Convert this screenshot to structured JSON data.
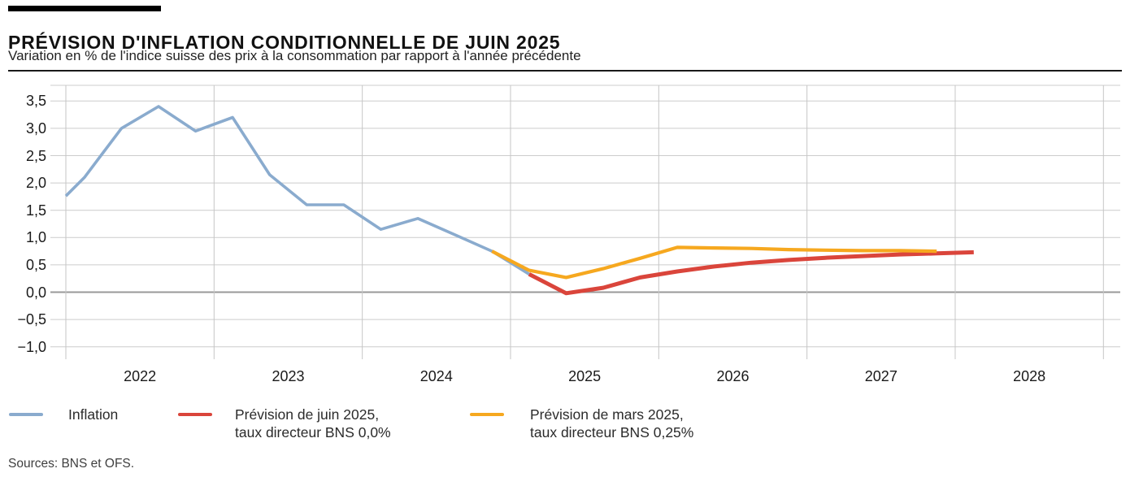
{
  "header": {
    "title": "PRÉVISION D'INFLATION CONDITIONNELLE DE JUIN 2025",
    "subtitle": "Variation en % de l'indice suisse des prix à la consommation par rapport à l'année précédente"
  },
  "footer": {
    "sources": "Sources: BNS et OFS."
  },
  "legend": [
    {
      "label_line1": "Inflation",
      "label_line2": "",
      "color": "#8aabce"
    },
    {
      "label_line1": "Prévision de juin 2025,",
      "label_line2": "taux directeur BNS 0,0%",
      "color": "#da453b"
    },
    {
      "label_line1": "Prévision de mars 2025,",
      "label_line2": "taux directeur BNS 0,25%",
      "color": "#f6a81f"
    }
  ],
  "colors": {
    "inflation_line": "#8aabce",
    "june_forecast_line": "#da453b",
    "march_forecast_line": "#f6a81f",
    "gridline": "#cccccc",
    "zero_line": "#999999",
    "text": "#1a1a1a"
  },
  "chart_data": {
    "type": "line",
    "title": "Prévision d'inflation conditionnelle de juin 2025",
    "ylabel": "Variation en % de l'indice suisse des prix à la consommation par rapport à l'année précédente",
    "grid": true,
    "legend_position": "bottom",
    "x_axis": {
      "tick_labels": [
        "2022",
        "2023",
        "2024",
        "2025",
        "2026",
        "2027",
        "2028"
      ],
      "grid_years": [
        2022,
        2023,
        2024,
        2025,
        2026,
        2027,
        2028,
        2029
      ],
      "range": [
        2022,
        2029.1
      ]
    },
    "y_axis": {
      "tick_labels": [
        "3,5",
        "3,0",
        "2,5",
        "2,0",
        "1,5",
        "1,0",
        "0,5",
        "0,0",
        "−0,5",
        "−1,0"
      ],
      "tick_values": [
        3.5,
        3.0,
        2.5,
        2.0,
        1.5,
        1.0,
        0.5,
        0.0,
        -0.5,
        -1.0
      ],
      "range": [
        -1.2,
        3.8
      ]
    },
    "series": [
      {
        "id": "inflation",
        "name": "Inflation",
        "color": "#8aabce",
        "stroke_width": 3.6,
        "points": [
          [
            2022.0,
            1.76
          ],
          [
            2022.125,
            2.1
          ],
          [
            2022.375,
            3.0
          ],
          [
            2022.625,
            3.4
          ],
          [
            2022.875,
            2.95
          ],
          [
            2023.125,
            3.2
          ],
          [
            2023.375,
            2.15
          ],
          [
            2023.625,
            1.6
          ],
          [
            2023.875,
            1.6
          ],
          [
            2024.125,
            1.15
          ],
          [
            2024.375,
            1.35
          ],
          [
            2024.625,
            1.05
          ],
          [
            2024.875,
            0.75
          ],
          [
            2025.125,
            0.33
          ]
        ]
      },
      {
        "id": "prevision-juin-2025",
        "name": "Prévision de juin 2025, taux directeur BNS 0,0%",
        "color": "#da453b",
        "stroke_width": 5,
        "points": [
          [
            2025.125,
            0.33
          ],
          [
            2025.375,
            -0.02
          ],
          [
            2025.625,
            0.08
          ],
          [
            2025.875,
            0.27
          ],
          [
            2026.125,
            0.38
          ],
          [
            2026.375,
            0.47
          ],
          [
            2026.625,
            0.54
          ],
          [
            2026.875,
            0.59
          ],
          [
            2027.125,
            0.63
          ],
          [
            2027.375,
            0.66
          ],
          [
            2027.625,
            0.69
          ],
          [
            2027.875,
            0.71
          ],
          [
            2028.125,
            0.73
          ]
        ]
      },
      {
        "id": "prevision-mars-2025",
        "name": "Prévision de mars 2025, taux directeur BNS 0,25%",
        "color": "#f6a81f",
        "stroke_width": 4.2,
        "points": [
          [
            2024.875,
            0.75
          ],
          [
            2025.125,
            0.4
          ],
          [
            2025.375,
            0.27
          ],
          [
            2025.625,
            0.43
          ],
          [
            2025.875,
            0.62
          ],
          [
            2026.125,
            0.82
          ],
          [
            2026.375,
            0.81
          ],
          [
            2026.625,
            0.8
          ],
          [
            2026.875,
            0.78
          ],
          [
            2027.125,
            0.77
          ],
          [
            2027.375,
            0.76
          ],
          [
            2027.625,
            0.76
          ],
          [
            2027.875,
            0.75
          ]
        ]
      }
    ]
  }
}
